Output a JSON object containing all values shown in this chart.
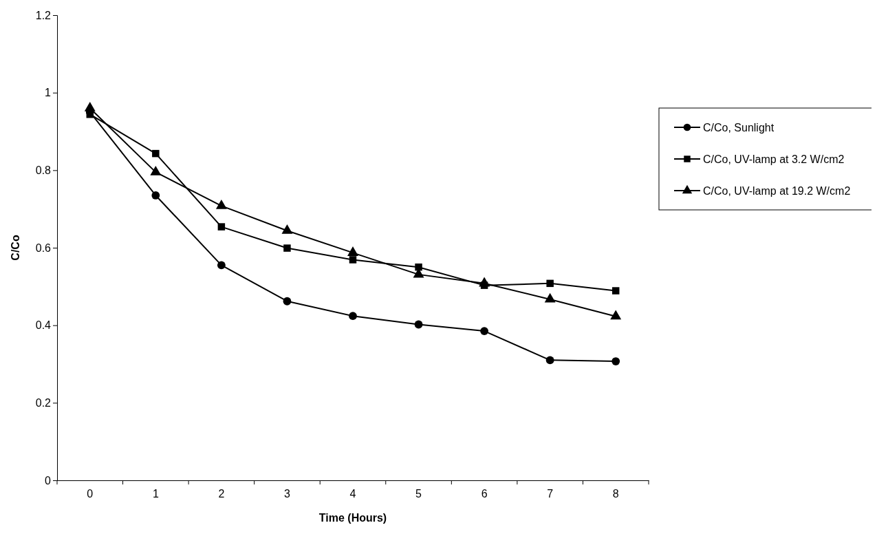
{
  "chart_data": {
    "type": "line",
    "xlabel": "Time (Hours)",
    "ylabel": "C/Co",
    "categories": [
      "0",
      "1",
      "2",
      "3",
      "4",
      "5",
      "6",
      "7",
      "8"
    ],
    "ylim": [
      0,
      1.2
    ],
    "yticks": [
      0,
      0.2,
      0.4,
      0.6,
      0.8,
      1,
      1.2
    ],
    "grid": false,
    "legend": "right",
    "line_style": "solid",
    "series": [
      {
        "name": "C/Co, Sunlight",
        "color": "#000000",
        "marker": "circle",
        "values": [
          0.95,
          0.735,
          0.555,
          0.462,
          0.424,
          0.402,
          0.385,
          0.31,
          0.307
        ]
      },
      {
        "name": "C/Co, UV-lamp at 3.2 W/cm2",
        "color": "#000000",
        "marker": "square",
        "values": [
          0.944,
          0.843,
          0.654,
          0.599,
          0.569,
          0.55,
          0.503,
          0.508,
          0.489
        ]
      },
      {
        "name": "C/Co, UV-lamp at 19.2 W/cm2",
        "color": "#000000",
        "marker": "triangle",
        "values": [
          0.96,
          0.795,
          0.708,
          0.644,
          0.587,
          0.531,
          0.508,
          0.467,
          0.423
        ]
      }
    ]
  }
}
